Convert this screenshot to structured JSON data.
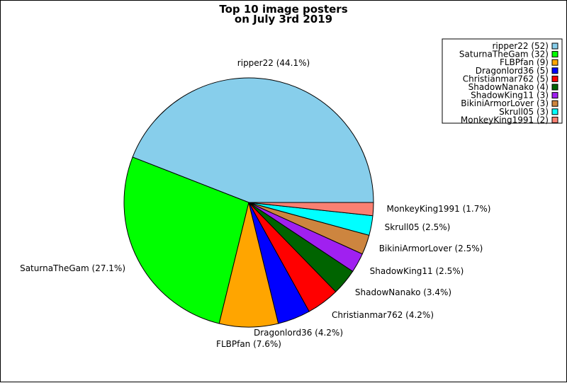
{
  "chart_data": {
    "type": "pie",
    "title_lines": [
      "Top 10 image posters",
      "on July 3rd 2019"
    ],
    "slices": [
      {
        "name": "ripper22",
        "value": 52,
        "percent_label": "44.1%",
        "color": "#87ceeb"
      },
      {
        "name": "SaturnaTheGam",
        "value": 32,
        "percent_label": "27.1%",
        "color": "#00ff00"
      },
      {
        "name": "FLBPfan",
        "value": 9,
        "percent_label": "7.6%",
        "color": "#ffa500"
      },
      {
        "name": "Dragonlord36",
        "value": 5,
        "percent_label": "4.2%",
        "color": "#0000ff"
      },
      {
        "name": "Christianmar762",
        "value": 5,
        "percent_label": "4.2%",
        "color": "#ff0000"
      },
      {
        "name": "ShadowNanako",
        "value": 4,
        "percent_label": "3.4%",
        "color": "#006400"
      },
      {
        "name": "ShadowKing11",
        "value": 3,
        "percent_label": "2.5%",
        "color": "#a020f0"
      },
      {
        "name": "BikiniArmorLover",
        "value": 3,
        "percent_label": "2.5%",
        "color": "#cd853f"
      },
      {
        "name": "Skrull05",
        "value": 3,
        "percent_label": "2.5%",
        "color": "#00ffff"
      },
      {
        "name": "MonkeyKing1991",
        "value": 2,
        "percent_label": "1.7%",
        "color": "#fa8072"
      }
    ],
    "legend_position": "top-right"
  }
}
